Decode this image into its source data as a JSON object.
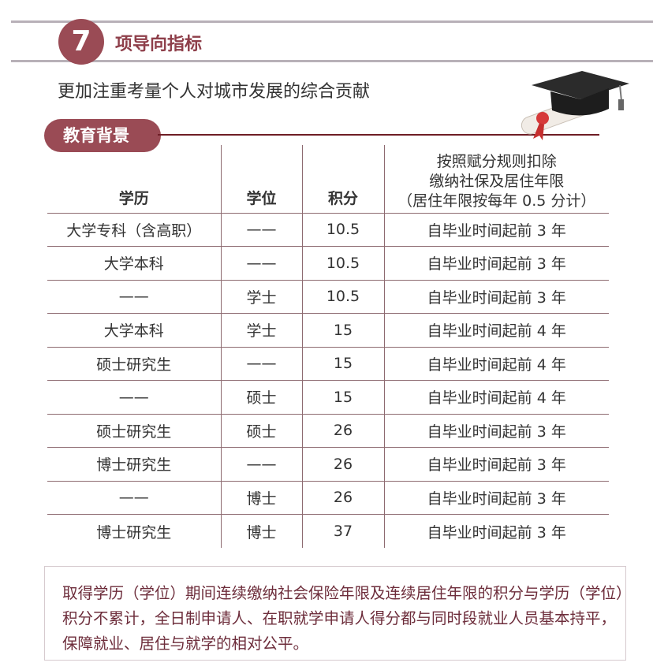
{
  "header": {
    "number": "7",
    "title": "项导向指标",
    "subtitle": "更加注重考量个人对城市发展的综合贡献"
  },
  "section": {
    "label": "教育背景",
    "icon": "graduation-cap-diploma-icon"
  },
  "table": {
    "headers": [
      "学历",
      "学位",
      "积分",
      "按照赋分规则扣除\n缴纳社保及居住年限\n（居住年限按每年 0.5 分计）"
    ],
    "rows": [
      [
        "大学专科（含高职）",
        "——",
        "10.5",
        "自毕业时间起前 3 年"
      ],
      [
        "大学本科",
        "——",
        "10.5",
        "自毕业时间起前 3 年"
      ],
      [
        "——",
        "学士",
        "10.5",
        "自毕业时间起前 3 年"
      ],
      [
        "大学本科",
        "学士",
        "15",
        "自毕业时间起前 4 年"
      ],
      [
        "硕士研究生",
        "——",
        "15",
        "自毕业时间起前 4 年"
      ],
      [
        "——",
        "硕士",
        "15",
        "自毕业时间起前 4 年"
      ],
      [
        "硕士研究生",
        "硕士",
        "26",
        "自毕业时间起前 3 年"
      ],
      [
        "博士研究生",
        "——",
        "26",
        "自毕业时间起前 3 年"
      ],
      [
        "——",
        "博士",
        "26",
        "自毕业时间起前 3 年"
      ],
      [
        "博士研究生",
        "博士",
        "37",
        "自毕业时间起前 3 年"
      ]
    ]
  },
  "note": "取得学历（学位）期间连续缴纳社会保险年限及连续居住年限的积分与学历（学位）积分不累计，全日制申请人、在职就学申请人得分都与同时段就业人员基本持平，保障就业、居住与就学的相对公平。",
  "colors": {
    "accent": "#9a4b55",
    "note_text": "#6d2d3b"
  }
}
